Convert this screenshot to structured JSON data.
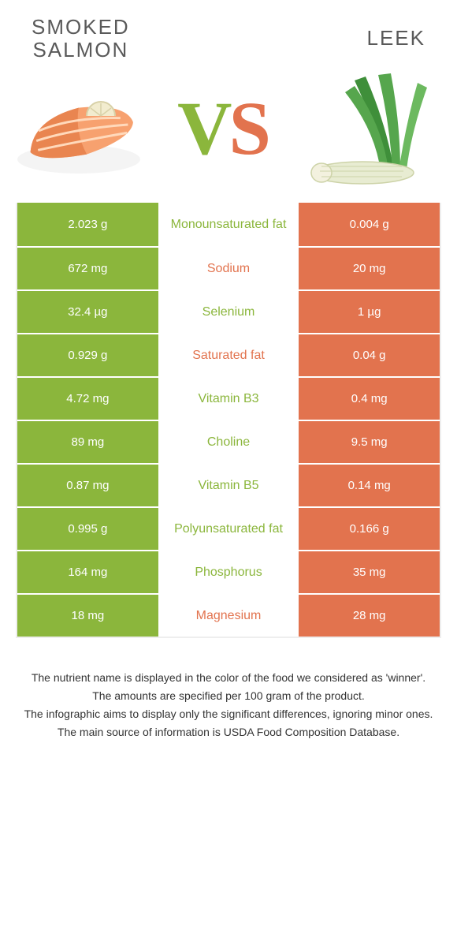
{
  "colors": {
    "left": "#8bb63c",
    "right": "#e2734e",
    "left_text": "#8bb63c",
    "right_text": "#e2734e",
    "title": "#5a5a5a"
  },
  "header": {
    "left_title": "Smoked\nsalmon",
    "right_title": "Leek"
  },
  "vs": {
    "v": "V",
    "s": "S"
  },
  "images": {
    "left": {
      "body": "#f7a16f",
      "body_dark": "#e98550",
      "stripe": "#ffd9bb",
      "lemon": "#f2eccf",
      "lemon_edge": "#d8d1a8",
      "plate": "#f4f4f4"
    },
    "right": {
      "leaf1": "#3f8f3a",
      "leaf2": "#56a64d",
      "leaf3": "#6cb95f",
      "stalk": "#e8ecd2",
      "stalk_edge": "#cdd3a8",
      "root": "#f3f1df"
    }
  },
  "rows": [
    {
      "l": "2.023 g",
      "label": "Monounsaturated fat",
      "r": "0.004 g",
      "winner": "left"
    },
    {
      "l": "672 mg",
      "label": "Sodium",
      "r": "20 mg",
      "winner": "right"
    },
    {
      "l": "32.4 µg",
      "label": "Selenium",
      "r": "1 µg",
      "winner": "left"
    },
    {
      "l": "0.929 g",
      "label": "Saturated fat",
      "r": "0.04 g",
      "winner": "right"
    },
    {
      "l": "4.72 mg",
      "label": "Vitamin B3",
      "r": "0.4 mg",
      "winner": "left"
    },
    {
      "l": "89 mg",
      "label": "Choline",
      "r": "9.5 mg",
      "winner": "left"
    },
    {
      "l": "0.87 mg",
      "label": "Vitamin B5",
      "r": "0.14 mg",
      "winner": "left"
    },
    {
      "l": "0.995 g",
      "label": "Polyunsaturated fat",
      "r": "0.166 g",
      "winner": "left"
    },
    {
      "l": "164 mg",
      "label": "Phosphorus",
      "r": "35 mg",
      "winner": "left"
    },
    {
      "l": "18 mg",
      "label": "Magnesium",
      "r": "28 mg",
      "winner": "right"
    }
  ],
  "footer": [
    "The nutrient name is displayed in the color of the food we considered as 'winner'.",
    "The amounts are specified per 100 gram of the product.",
    "The infographic aims to display only the significant differences, ignoring minor ones.",
    "The main source of information is USDA Food Composition Database."
  ]
}
